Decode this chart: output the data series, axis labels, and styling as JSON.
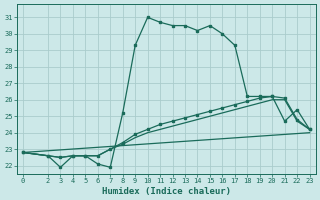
{
  "xlabel": "Humidex (Indice chaleur)",
  "bg_color": "#cce8e8",
  "grid_color": "#aacccc",
  "line_color": "#1a6b5a",
  "xlim": [
    -0.5,
    23.5
  ],
  "ylim": [
    21.5,
    31.8
  ],
  "xticks": [
    0,
    2,
    3,
    4,
    5,
    6,
    7,
    8,
    9,
    10,
    11,
    12,
    13,
    14,
    15,
    16,
    17,
    18,
    19,
    20,
    21,
    22,
    23
  ],
  "yticks": [
    22,
    23,
    24,
    25,
    26,
    27,
    28,
    29,
    30,
    31
  ],
  "line1_x": [
    0,
    2,
    3,
    4,
    5,
    6,
    7,
    8,
    9,
    10,
    11,
    12,
    13,
    14,
    15,
    16,
    17,
    18,
    19,
    20,
    21,
    22,
    23
  ],
  "line1_y": [
    22.8,
    22.6,
    21.9,
    22.6,
    22.6,
    22.1,
    21.9,
    25.2,
    29.3,
    31.0,
    30.7,
    30.5,
    30.5,
    30.2,
    30.5,
    30.0,
    29.3,
    26.2,
    26.2,
    26.2,
    24.7,
    25.4,
    24.2
  ],
  "line2_x": [
    0,
    2,
    3,
    4,
    5,
    6,
    7,
    8,
    9,
    10,
    11,
    12,
    13,
    14,
    15,
    16,
    17,
    18,
    19,
    20,
    21,
    22,
    23
  ],
  "line2_y": [
    22.8,
    22.6,
    22.5,
    22.6,
    22.6,
    22.6,
    23.0,
    23.4,
    23.9,
    24.2,
    24.5,
    24.7,
    24.9,
    25.1,
    25.3,
    25.5,
    25.7,
    25.9,
    26.1,
    26.2,
    26.1,
    24.8,
    24.2
  ],
  "line3_x": [
    0,
    23
  ],
  "line3_y": [
    22.8,
    24.0
  ],
  "line4_x": [
    0,
    2,
    3,
    4,
    5,
    6,
    7,
    8,
    9,
    10,
    11,
    12,
    13,
    14,
    15,
    16,
    17,
    18,
    19,
    20,
    21,
    22,
    23
  ],
  "line4_y": [
    22.8,
    22.6,
    22.5,
    22.6,
    22.6,
    22.6,
    23.0,
    23.3,
    23.7,
    24.0,
    24.2,
    24.4,
    24.6,
    24.8,
    25.0,
    25.2,
    25.4,
    25.6,
    25.8,
    26.0,
    26.0,
    24.7,
    24.2
  ]
}
